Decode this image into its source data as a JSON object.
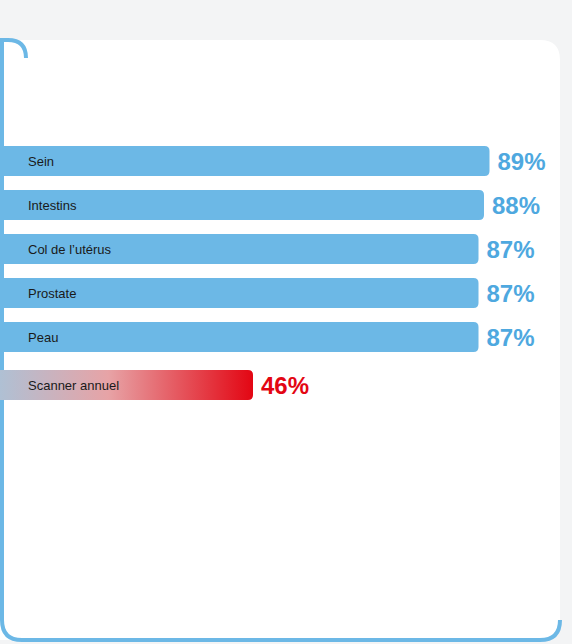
{
  "chart_data": {
    "type": "bar",
    "orientation": "horizontal",
    "categories": [
      "Sein",
      "Intestins",
      "Col de l’utérus",
      "Prostate",
      "Peau",
      "Scanner annuel"
    ],
    "values": [
      89,
      88,
      87,
      87,
      87,
      46
    ],
    "value_labels": [
      "89%",
      "88%",
      "87%",
      "87%",
      "87%",
      "46%"
    ],
    "colors": [
      "#6cb8e6",
      "#6cb8e6",
      "#6cb8e6",
      "#6cb8e6",
      "#6cb8e6",
      "#e30613"
    ],
    "xlim": [
      0,
      100
    ],
    "data_labels": true,
    "tick_labels": "y",
    "grid": false
  }
}
